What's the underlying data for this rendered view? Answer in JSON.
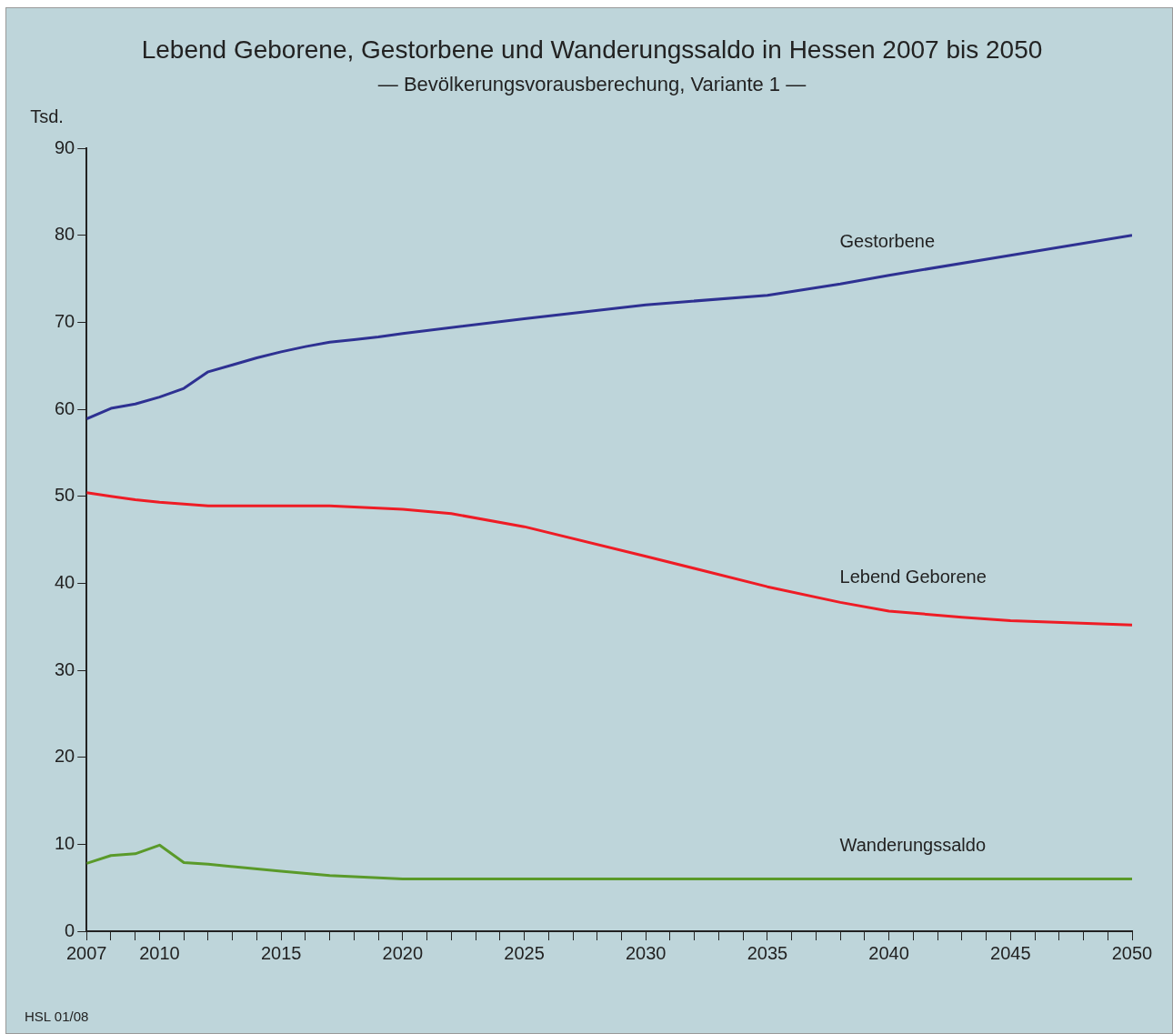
{
  "chart_data": {
    "type": "line",
    "title": "Lebend Geborene, Gestorbene und Wanderungssaldo in Hessen 2007 bis 2050",
    "subtitle": "— Bevölkerungsvorausberechung, Variante 1 —",
    "ylabel": "Tsd.",
    "annotations": [
      "HSL 01/08"
    ],
    "xlim": [
      2007,
      2050
    ],
    "xticks": [
      2007,
      {
        "value": 2008,
        "label": null
      },
      {
        "value": 2009,
        "label": null
      },
      2010,
      {
        "value": 2011,
        "label": null
      },
      {
        "value": 2012,
        "label": null
      },
      {
        "value": 2013,
        "label": null
      },
      {
        "value": 2014,
        "label": null
      },
      2015,
      {
        "value": 2016,
        "label": null
      },
      {
        "value": 2017,
        "label": null
      },
      {
        "value": 2018,
        "label": null
      },
      {
        "value": 2019,
        "label": null
      },
      2020,
      {
        "value": 2021,
        "label": null
      },
      {
        "value": 2022,
        "label": null
      },
      {
        "value": 2023,
        "label": null
      },
      {
        "value": 2024,
        "label": null
      },
      2025,
      {
        "value": 2026,
        "label": null
      },
      {
        "value": 2027,
        "label": null
      },
      {
        "value": 2028,
        "label": null
      },
      {
        "value": 2029,
        "label": null
      },
      2030,
      {
        "value": 2031,
        "label": null
      },
      {
        "value": 2032,
        "label": null
      },
      {
        "value": 2033,
        "label": null
      },
      {
        "value": 2034,
        "label": null
      },
      2035,
      {
        "value": 2036,
        "label": null
      },
      {
        "value": 2037,
        "label": null
      },
      {
        "value": 2038,
        "label": null
      },
      {
        "value": 2039,
        "label": null
      },
      2040,
      {
        "value": 2041,
        "label": null
      },
      {
        "value": 2042,
        "label": null
      },
      {
        "value": 2043,
        "label": null
      },
      {
        "value": 2044,
        "label": null
      },
      2045,
      {
        "value": 2046,
        "label": null
      },
      {
        "value": 2047,
        "label": null
      },
      {
        "value": 2048,
        "label": null
      },
      {
        "value": 2049,
        "label": null
      },
      2050
    ],
    "ylim": [
      0,
      90
    ],
    "yticks": [
      0,
      10,
      20,
      30,
      40,
      50,
      60,
      70,
      80,
      90
    ],
    "grid": false,
    "legend": false,
    "marker": "none",
    "line_style": "solid",
    "series": [
      {
        "name": "Gestorbene",
        "color": "#2e3192",
        "x": [
          2007,
          2008,
          2009,
          2010,
          2011,
          2012,
          2013,
          2014,
          2015,
          2016,
          2017,
          2018,
          2019,
          2020,
          2025,
          2030,
          2035,
          2038,
          2040,
          2045,
          2050
        ],
        "values": [
          58.9,
          60.1,
          60.6,
          61.4,
          62.4,
          64.3,
          65.1,
          65.9,
          66.6,
          67.2,
          67.7,
          68,
          68.3,
          68.7,
          70.4,
          72,
          73.1,
          74.4,
          75.4,
          77.7,
          80
        ]
      },
      {
        "name": "Lebend Geborene",
        "color": "#ee1c25",
        "x": [
          2007,
          2008,
          2009,
          2010,
          2012,
          2015,
          2017,
          2020,
          2022,
          2025,
          2030,
          2035,
          2038,
          2040,
          2043,
          2045,
          2050
        ],
        "values": [
          50.4,
          50,
          49.6,
          49.3,
          48.9,
          48.9,
          48.9,
          48.5,
          48,
          46.5,
          43.1,
          39.6,
          37.8,
          36.8,
          36.1,
          35.7,
          35.2
        ]
      },
      {
        "name": "Wanderungssaldo",
        "color": "#5a9a2a",
        "x": [
          2007,
          2008,
          2009,
          2010,
          2011,
          2012,
          2015,
          2017,
          2020,
          2050
        ],
        "values": [
          7.8,
          8.7,
          8.9,
          9.9,
          7.9,
          7.7,
          6.9,
          6.4,
          6,
          6
        ]
      }
    ]
  }
}
